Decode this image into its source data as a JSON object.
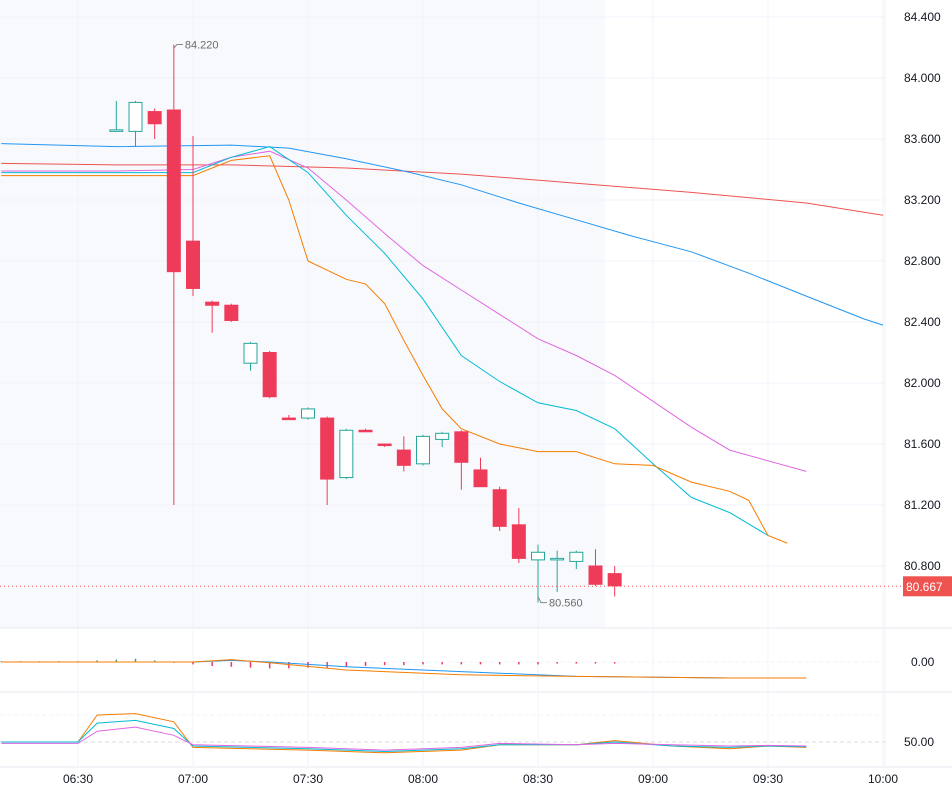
{
  "chart_data": {
    "type": "candlestick",
    "x_tick_labels": [
      "06:30",
      "07:00",
      "07:30",
      "08:00",
      "08:30",
      "09:00",
      "09:30",
      "10:00"
    ],
    "y_tick_labels": [
      "84.400",
      "84.000",
      "83.600",
      "83.200",
      "82.800",
      "82.400",
      "82.000",
      "81.600",
      "81.200",
      "80.800"
    ],
    "ylim": [
      80.18,
      84.51
    ],
    "xlim_minutes": [
      370,
      615
    ],
    "last_price": "80.667",
    "last_price_value": 80.667,
    "annotations": {
      "high": {
        "label": "84.220",
        "value": 84.22
      },
      "low": {
        "label": "80.560",
        "value": 80.56
      }
    },
    "candles": [
      {
        "t": "06:40",
        "o": 83.65,
        "h": 83.85,
        "l": 83.65,
        "c": 83.66
      },
      {
        "t": "06:45",
        "o": 83.65,
        "h": 83.85,
        "l": 83.55,
        "c": 83.84
      },
      {
        "t": "06:50",
        "o": 83.78,
        "h": 83.8,
        "l": 83.6,
        "c": 83.7
      },
      {
        "t": "06:55",
        "o": 83.79,
        "h": 84.22,
        "l": 81.2,
        "c": 82.73
      },
      {
        "t": "07:00",
        "o": 82.93,
        "h": 83.62,
        "l": 82.57,
        "c": 82.62
      },
      {
        "t": "07:05",
        "o": 82.53,
        "h": 82.54,
        "l": 82.33,
        "c": 82.51
      },
      {
        "t": "07:10",
        "o": 82.51,
        "h": 82.52,
        "l": 82.4,
        "c": 82.41
      },
      {
        "t": "07:15",
        "o": 82.13,
        "h": 82.27,
        "l": 82.08,
        "c": 82.26
      },
      {
        "t": "07:20",
        "o": 82.2,
        "h": 82.21,
        "l": 81.9,
        "c": 81.91
      },
      {
        "t": "07:25",
        "o": 81.77,
        "h": 81.79,
        "l": 81.76,
        "c": 81.76
      },
      {
        "t": "07:30",
        "o": 81.77,
        "h": 81.84,
        "l": 81.76,
        "c": 81.83
      },
      {
        "t": "07:35",
        "o": 81.77,
        "h": 81.78,
        "l": 81.2,
        "c": 81.37
      },
      {
        "t": "07:40",
        "o": 81.38,
        "h": 81.7,
        "l": 81.37,
        "c": 81.69
      },
      {
        "t": "07:45",
        "o": 81.69,
        "h": 81.7,
        "l": 81.68,
        "c": 81.68
      },
      {
        "t": "07:50",
        "o": 81.6,
        "h": 81.6,
        "l": 81.58,
        "c": 81.59
      },
      {
        "t": "07:55",
        "o": 81.56,
        "h": 81.65,
        "l": 81.42,
        "c": 81.46
      },
      {
        "t": "08:00",
        "o": 81.47,
        "h": 81.66,
        "l": 81.46,
        "c": 81.65
      },
      {
        "t": "08:05",
        "o": 81.63,
        "h": 81.68,
        "l": 81.58,
        "c": 81.67
      },
      {
        "t": "08:10",
        "o": 81.68,
        "h": 81.69,
        "l": 81.3,
        "c": 81.48
      },
      {
        "t": "08:15",
        "o": 81.43,
        "h": 81.51,
        "l": 81.32,
        "c": 81.32
      },
      {
        "t": "08:20",
        "o": 81.3,
        "h": 81.32,
        "l": 81.03,
        "c": 81.06
      },
      {
        "t": "08:25",
        "o": 81.07,
        "h": 81.18,
        "l": 80.82,
        "c": 80.85
      },
      {
        "t": "08:30",
        "o": 80.84,
        "h": 80.94,
        "l": 80.56,
        "c": 80.89
      },
      {
        "t": "08:35",
        "o": 80.84,
        "h": 80.9,
        "l": 80.63,
        "c": 80.85
      },
      {
        "t": "08:40",
        "o": 80.83,
        "h": 80.9,
        "l": 80.78,
        "c": 80.89
      },
      {
        "t": "08:45",
        "o": 80.8,
        "h": 80.91,
        "l": 80.67,
        "c": 80.68
      },
      {
        "t": "08:50",
        "o": 80.75,
        "h": 80.8,
        "l": 80.6,
        "c": 80.67
      }
    ],
    "moving_averages": [
      {
        "color": "#ef5350",
        "values": [
          [
            370,
            83.44
          ],
          [
            400,
            83.43
          ],
          [
            430,
            83.43
          ],
          [
            460,
            83.41
          ],
          [
            490,
            83.37
          ],
          [
            520,
            83.31
          ],
          [
            550,
            83.25
          ],
          [
            580,
            83.18
          ],
          [
            600,
            83.1
          ]
        ]
      },
      {
        "color": "#2196f3",
        "values": [
          [
            370,
            83.57
          ],
          [
            400,
            83.55
          ],
          [
            430,
            83.56
          ],
          [
            445,
            83.54
          ],
          [
            460,
            83.47
          ],
          [
            475,
            83.39
          ],
          [
            490,
            83.3
          ],
          [
            505,
            83.18
          ],
          [
            520,
            83.07
          ],
          [
            535,
            82.96
          ],
          [
            550,
            82.86
          ],
          [
            565,
            82.72
          ],
          [
            580,
            82.57
          ],
          [
            595,
            82.42
          ],
          [
            600,
            82.38
          ]
        ]
      },
      {
        "color": "#e066e0",
        "values": [
          [
            370,
            83.39
          ],
          [
            400,
            83.39
          ],
          [
            420,
            83.4
          ],
          [
            430,
            83.48
          ],
          [
            440,
            83.52
          ],
          [
            450,
            83.41
          ],
          [
            460,
            83.2
          ],
          [
            470,
            82.98
          ],
          [
            480,
            82.77
          ],
          [
            490,
            82.61
          ],
          [
            500,
            82.45
          ],
          [
            510,
            82.29
          ],
          [
            520,
            82.18
          ],
          [
            530,
            82.05
          ],
          [
            540,
            81.88
          ],
          [
            550,
            81.71
          ],
          [
            560,
            81.56
          ],
          [
            580,
            81.42
          ]
        ]
      },
      {
        "color": "#00bcd4",
        "values": [
          [
            370,
            83.38
          ],
          [
            400,
            83.38
          ],
          [
            420,
            83.38
          ],
          [
            430,
            83.48
          ],
          [
            440,
            83.55
          ],
          [
            450,
            83.38
          ],
          [
            460,
            83.1
          ],
          [
            470,
            82.85
          ],
          [
            480,
            82.55
          ],
          [
            490,
            82.18
          ],
          [
            500,
            82.01
          ],
          [
            510,
            81.87
          ],
          [
            520,
            81.82
          ],
          [
            530,
            81.7
          ],
          [
            540,
            81.47
          ],
          [
            550,
            81.25
          ],
          [
            560,
            81.15
          ],
          [
            570,
            81.0
          ]
        ]
      },
      {
        "color": "#f57c00",
        "values": [
          [
            370,
            83.36
          ],
          [
            400,
            83.36
          ],
          [
            420,
            83.36
          ],
          [
            430,
            83.46
          ],
          [
            440,
            83.49
          ],
          [
            445,
            83.2
          ],
          [
            450,
            82.8
          ],
          [
            455,
            82.74
          ],
          [
            460,
            82.68
          ],
          [
            465,
            82.65
          ],
          [
            470,
            82.52
          ],
          [
            475,
            82.28
          ],
          [
            480,
            82.05
          ],
          [
            485,
            81.83
          ],
          [
            490,
            81.7
          ],
          [
            500,
            81.6
          ],
          [
            510,
            81.55
          ],
          [
            520,
            81.55
          ],
          [
            530,
            81.47
          ],
          [
            540,
            81.46
          ],
          [
            550,
            81.35
          ],
          [
            560,
            81.29
          ],
          [
            565,
            81.23
          ],
          [
            570,
            81.0
          ],
          [
            575,
            80.95
          ]
        ]
      }
    ],
    "indicator1": {
      "y_tick_label": "0.00",
      "lines": [
        {
          "color": "#2196f3",
          "values": [
            [
              370,
              0.0
            ],
            [
              420,
              0.0
            ],
            [
              430,
              0.02
            ],
            [
              440,
              0.0
            ],
            [
              460,
              -0.06
            ],
            [
              490,
              -0.12
            ],
            [
              520,
              -0.18
            ],
            [
              560,
              -0.2
            ],
            [
              580,
              -0.2
            ]
          ]
        },
        {
          "color": "#f57c00",
          "values": [
            [
              370,
              0.0
            ],
            [
              420,
              0.0
            ],
            [
              430,
              0.03
            ],
            [
              440,
              -0.01
            ],
            [
              460,
              -0.1
            ],
            [
              490,
              -0.16
            ],
            [
              520,
              -0.18
            ],
            [
              560,
              -0.2
            ],
            [
              580,
              -0.2
            ]
          ]
        }
      ],
      "histogram_times": [
        "06:10",
        "06:15",
        "06:20",
        "06:25",
        "06:30",
        "06:35",
        "06:40",
        "06:45",
        "06:50",
        "06:55",
        "07:00",
        "07:05",
        "07:10",
        "07:15",
        "07:20",
        "07:25",
        "07:30",
        "07:35",
        "07:40",
        "07:45",
        "07:50",
        "07:55",
        "08:00",
        "08:05",
        "08:10",
        "08:15",
        "08:20",
        "08:25",
        "08:30",
        "08:35",
        "08:40",
        "08:45",
        "08:50"
      ],
      "histogram_values": [
        0.01,
        0.01,
        0.01,
        0.01,
        0.01,
        0.02,
        0.03,
        0.04,
        0.02,
        -0.01,
        -0.03,
        -0.05,
        -0.06,
        -0.07,
        -0.08,
        -0.08,
        -0.07,
        -0.07,
        -0.06,
        -0.05,
        -0.04,
        -0.04,
        -0.03,
        -0.03,
        -0.03,
        -0.03,
        -0.03,
        -0.03,
        -0.03,
        -0.02,
        -0.02,
        -0.02,
        -0.02
      ]
    },
    "indicator2": {
      "y_tick_label": "50.00",
      "lines": [
        {
          "color": "#f57c00",
          "values": [
            [
              370,
              50.0
            ],
            [
              390,
              50.0
            ],
            [
              395,
              70.0
            ],
            [
              405,
              71.0
            ],
            [
              415,
              65.0
            ],
            [
              420,
              46.0
            ],
            [
              450,
              44.0
            ],
            [
              470,
              42.0
            ],
            [
              490,
              44.0
            ],
            [
              500,
              48.0
            ],
            [
              520,
              48.0
            ],
            [
              530,
              51.0
            ],
            [
              545,
              47.0
            ],
            [
              560,
              45.0
            ],
            [
              570,
              47.0
            ],
            [
              580,
              46.0
            ]
          ]
        },
        {
          "color": "#00bcd4",
          "values": [
            [
              370,
              50.0
            ],
            [
              390,
              50.0
            ],
            [
              395,
              64.0
            ],
            [
              405,
              66.0
            ],
            [
              415,
              60.0
            ],
            [
              420,
              47.0
            ],
            [
              450,
              45.0
            ],
            [
              470,
              43.0
            ],
            [
              490,
              45.0
            ],
            [
              500,
              48.0
            ],
            [
              520,
              48.0
            ],
            [
              530,
              50.0
            ],
            [
              545,
              47.0
            ],
            [
              560,
              46.0
            ],
            [
              570,
              47.0
            ],
            [
              580,
              46.5
            ]
          ]
        },
        {
          "color": "#e066e0",
          "values": [
            [
              370,
              49.0
            ],
            [
              390,
              49.0
            ],
            [
              395,
              58.0
            ],
            [
              405,
              61.0
            ],
            [
              415,
              55.0
            ],
            [
              420,
              48.0
            ],
            [
              450,
              46.0
            ],
            [
              470,
              44.0
            ],
            [
              490,
              46.0
            ],
            [
              500,
              49.0
            ],
            [
              520,
              48.0
            ],
            [
              530,
              49.0
            ],
            [
              545,
              48.0
            ],
            [
              560,
              47.0
            ],
            [
              570,
              47.5
            ],
            [
              580,
              47.0
            ]
          ]
        }
      ]
    }
  },
  "colors": {
    "up": "#26a69a",
    "down": "#ef3b5a",
    "grid": "#f0f3fa",
    "axis_text": "#131722",
    "annotation_text": "#6b6b6b",
    "price_label_bg": "#ef5350",
    "background_panel": "#f8f9fd"
  }
}
